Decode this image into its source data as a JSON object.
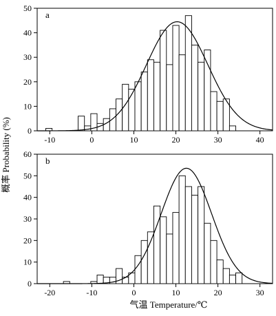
{
  "figure": {
    "ylabel": "概率 Probability (%)",
    "xlabel": "气温  Temperature/℃"
  },
  "chart_data": [
    {
      "type": "bar",
      "panel_label": "a",
      "bin_width": 1.5,
      "xlim": [
        -13,
        43
      ],
      "ylim": [
        0,
        50
      ],
      "xticks": [
        -10,
        0,
        10,
        20,
        30,
        40
      ],
      "yticks": [
        0,
        10,
        20,
        30,
        40,
        50
      ],
      "bins": [
        {
          "x": -10.2,
          "y": 1
        },
        {
          "x": -2.5,
          "y": 6
        },
        {
          "x": -1.0,
          "y": 2
        },
        {
          "x": 0.5,
          "y": 7
        },
        {
          "x": 2.0,
          "y": 3
        },
        {
          "x": 3.5,
          "y": 5
        },
        {
          "x": 5.0,
          "y": 9
        },
        {
          "x": 6.5,
          "y": 13
        },
        {
          "x": 8.0,
          "y": 19
        },
        {
          "x": 9.5,
          "y": 17
        },
        {
          "x": 11.0,
          "y": 20
        },
        {
          "x": 12.5,
          "y": 24
        },
        {
          "x": 14.0,
          "y": 29
        },
        {
          "x": 15.5,
          "y": 28
        },
        {
          "x": 17.0,
          "y": 41
        },
        {
          "x": 18.5,
          "y": 27
        },
        {
          "x": 20.0,
          "y": 43
        },
        {
          "x": 21.5,
          "y": 31
        },
        {
          "x": 23.0,
          "y": 47
        },
        {
          "x": 24.5,
          "y": 35
        },
        {
          "x": 26.0,
          "y": 28
        },
        {
          "x": 27.5,
          "y": 33
        },
        {
          "x": 29.0,
          "y": 16
        },
        {
          "x": 30.5,
          "y": 12
        },
        {
          "x": 32.0,
          "y": 13
        },
        {
          "x": 33.5,
          "y": 2
        }
      ],
      "fit": {
        "type": "normal",
        "mean": 20.3,
        "sd": 7.3,
        "peak": 44.5
      }
    },
    {
      "type": "bar",
      "panel_label": "b",
      "bin_width": 1.5,
      "xlim": [
        -23,
        33
      ],
      "ylim": [
        0,
        60
      ],
      "xticks": [
        -20,
        -10,
        0,
        10,
        20,
        30
      ],
      "yticks": [
        0,
        10,
        20,
        30,
        40,
        50,
        60
      ],
      "bins": [
        {
          "x": -16.0,
          "y": 1
        },
        {
          "x": -9.5,
          "y": 1
        },
        {
          "x": -8.0,
          "y": 4
        },
        {
          "x": -6.5,
          "y": 3
        },
        {
          "x": -5.0,
          "y": 3
        },
        {
          "x": -3.5,
          "y": 7
        },
        {
          "x": -2.0,
          "y": 3
        },
        {
          "x": -0.5,
          "y": 5
        },
        {
          "x": 1.0,
          "y": 13
        },
        {
          "x": 2.5,
          "y": 20
        },
        {
          "x": 4.0,
          "y": 24
        },
        {
          "x": 5.5,
          "y": 36
        },
        {
          "x": 7.0,
          "y": 31
        },
        {
          "x": 8.5,
          "y": 23
        },
        {
          "x": 10.0,
          "y": 33
        },
        {
          "x": 11.5,
          "y": 50
        },
        {
          "x": 13.0,
          "y": 45
        },
        {
          "x": 14.5,
          "y": 41
        },
        {
          "x": 16.0,
          "y": 45
        },
        {
          "x": 17.5,
          "y": 28
        },
        {
          "x": 19.0,
          "y": 20
        },
        {
          "x": 20.5,
          "y": 11
        },
        {
          "x": 22.0,
          "y": 7
        },
        {
          "x": 23.5,
          "y": 4
        },
        {
          "x": 25.0,
          "y": 5
        }
      ],
      "fit": {
        "type": "normal",
        "mean": 12.5,
        "sd": 6.0,
        "peak": 53.5
      }
    }
  ]
}
